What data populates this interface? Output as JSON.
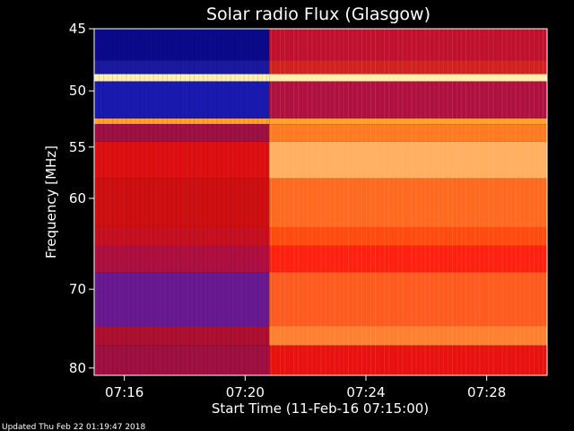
{
  "chart_data": {
    "type": "heatmap",
    "title": "Solar radio Flux (Glasgow)",
    "xlabel": "Start Time (11-Feb-16 07:15:00)",
    "ylabel": "Frequency [MHz]",
    "x_ticks": [
      "07:16",
      "07:20",
      "07:24",
      "07:28"
    ],
    "y_ticks": [
      45,
      50,
      55,
      60,
      70,
      80
    ],
    "y_scale": "log",
    "ylim": [
      45,
      81
    ],
    "xlim_minutes_after_start": [
      0,
      15
    ],
    "x_tick_minutes_after_start": [
      1,
      5,
      9,
      13
    ],
    "colormap": [
      "#0a0a8a",
      "#3a1f9e",
      "#b0103a",
      "#e01010",
      "#ff3010",
      "#ff7a20",
      "#ffb060",
      "#fff0b0"
    ],
    "intensity_transition_minutes_after_start": 5.8,
    "segments": [
      {
        "x_from": 0,
        "x_to": 5.8,
        "level": "low"
      },
      {
        "x_from": 5.8,
        "x_to": 15,
        "level": "high"
      }
    ],
    "bands_mhz": [
      {
        "f_from": 45.0,
        "f_to": 47.5,
        "before": "#0a0a8a",
        "after": "#c01030"
      },
      {
        "f_from": 47.5,
        "f_to": 48.6,
        "before": "#1a1aa0",
        "after": "#d02020"
      },
      {
        "f_from": 48.6,
        "f_to": 49.2,
        "before": "#fff0b0",
        "after": "#fff0b0"
      },
      {
        "f_from": 49.2,
        "f_to": 52.4,
        "before": "#1a1ab0",
        "after": "#b01040"
      },
      {
        "f_from": 52.4,
        "f_to": 52.9,
        "before": "#ffa030",
        "after": "#ffa030"
      },
      {
        "f_from": 52.9,
        "f_to": 54.5,
        "before": "#a01040",
        "after": "#ff7a20"
      },
      {
        "f_from": 54.5,
        "f_to": 58.0,
        "before": "#e01010",
        "after": "#ffb060"
      },
      {
        "f_from": 58.0,
        "f_to": 63.0,
        "before": "#d01010",
        "after": "#ff6a20"
      },
      {
        "f_from": 63.0,
        "f_to": 65.0,
        "before": "#c81020",
        "after": "#ff4a10"
      },
      {
        "f_from": 65.0,
        "f_to": 68.0,
        "before": "#b01040",
        "after": "#ff2010"
      },
      {
        "f_from": 68.0,
        "f_to": 74.5,
        "before": "#6a1a90",
        "after": "#ff5a20"
      },
      {
        "f_from": 74.5,
        "f_to": 77.0,
        "before": "#b01030",
        "after": "#ff8030"
      },
      {
        "f_from": 77.0,
        "f_to": 81.0,
        "before": "#a01040",
        "after": "#e81010"
      }
    ]
  },
  "footer": {
    "updated": "Updated Thu Feb 22 01:19:47 2018"
  }
}
